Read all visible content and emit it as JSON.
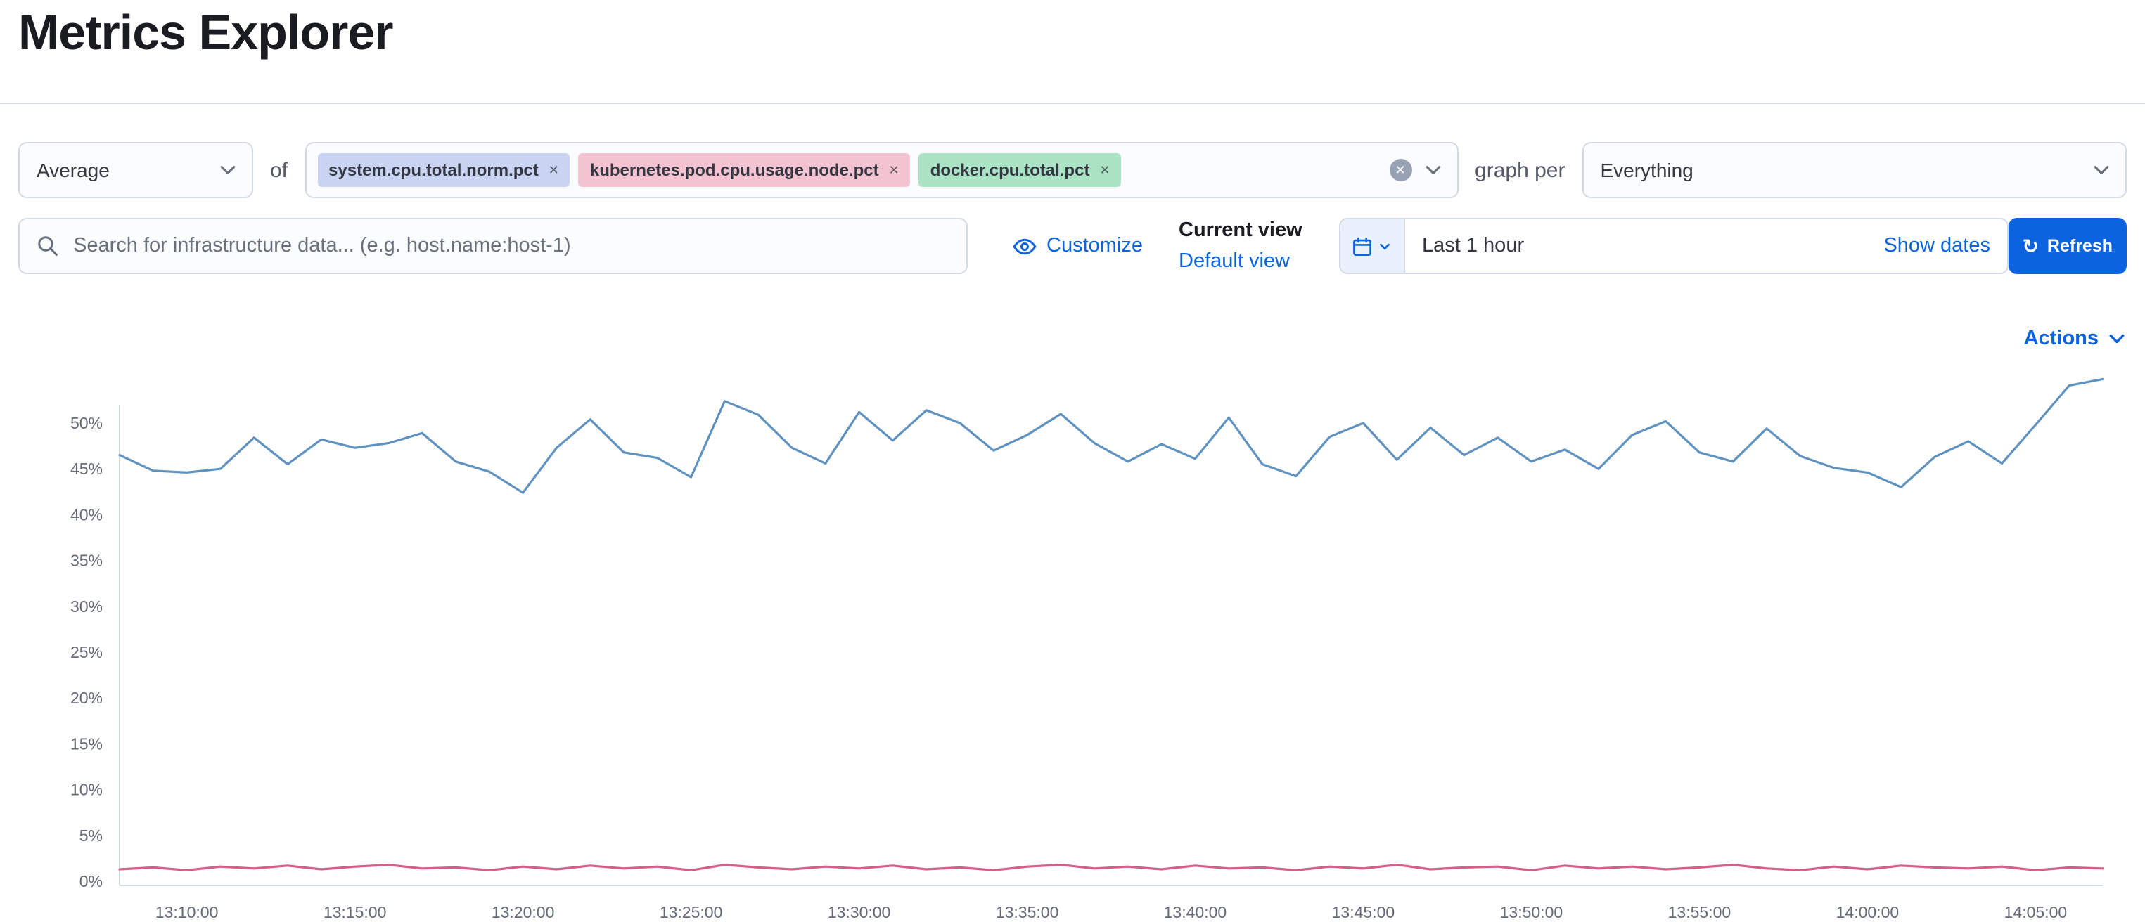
{
  "page": {
    "title": "Metrics Explorer"
  },
  "colors": {
    "primary": "#0b64dd",
    "border": "#d3dae6",
    "text": "#343741",
    "muted": "#69707d"
  },
  "toolbar": {
    "aggregation_value": "Average",
    "of_label": "of",
    "metrics": [
      {
        "label": "system.cpu.total.norm.pct",
        "color": "#c9d4f3"
      },
      {
        "label": "kubernetes.pod.cpu.usage.node.pct",
        "color": "#f3c3d1"
      },
      {
        "label": "docker.cpu.total.pct",
        "color": "#abe3c5"
      }
    ],
    "graph_per_label": "graph per",
    "group_by_value": "Everything"
  },
  "search": {
    "placeholder": "Search for infrastructure data... (e.g. host.name:host-1)",
    "customize_label": "Customize"
  },
  "view": {
    "current_view_label": "Current view",
    "default_view_label": "Default view"
  },
  "datepicker": {
    "time_range": "Last 1 hour",
    "show_dates_label": "Show dates",
    "refresh_label": "Refresh"
  },
  "chart": {
    "actions_label": "Actions"
  },
  "chart_data": {
    "type": "line",
    "title": "",
    "xlabel": "",
    "ylabel": "",
    "ylim": [
      0,
      55
    ],
    "grid": false,
    "legend": "none",
    "y_ticks": [
      0,
      5,
      10,
      15,
      20,
      25,
      30,
      35,
      40,
      45,
      50
    ],
    "x_ticks": [
      "13:10:00",
      "13:15:00",
      "13:20:00",
      "13:25:00",
      "13:30:00",
      "13:35:00",
      "13:40:00",
      "13:45:00",
      "13:50:00",
      "13:55:00",
      "14:00:00",
      "14:05:00"
    ],
    "x": [
      "13:08:00",
      "13:09:00",
      "13:10:00",
      "13:11:00",
      "13:12:00",
      "13:13:00",
      "13:14:00",
      "13:15:00",
      "13:16:00",
      "13:17:00",
      "13:18:00",
      "13:19:00",
      "13:20:00",
      "13:21:00",
      "13:22:00",
      "13:23:00",
      "13:24:00",
      "13:25:00",
      "13:26:00",
      "13:27:00",
      "13:28:00",
      "13:29:00",
      "13:30:00",
      "13:31:00",
      "13:32:00",
      "13:33:00",
      "13:34:00",
      "13:35:00",
      "13:36:00",
      "13:37:00",
      "13:38:00",
      "13:39:00",
      "13:40:00",
      "13:41:00",
      "13:42:00",
      "13:43:00",
      "13:44:00",
      "13:45:00",
      "13:46:00",
      "13:47:00",
      "13:48:00",
      "13:49:00",
      "13:50:00",
      "13:51:00",
      "13:52:00",
      "13:53:00",
      "13:54:00",
      "13:55:00",
      "13:56:00",
      "13:57:00",
      "13:58:00",
      "13:59:00",
      "14:00:00",
      "14:01:00",
      "14:02:00",
      "14:03:00",
      "14:04:00",
      "14:05:00",
      "14:06:00",
      "14:07:00"
    ],
    "series": [
      {
        "name": "system.cpu.total.norm.pct",
        "color": "#6092c0",
        "values": [
          46.5,
          44.8,
          44.6,
          45.0,
          48.4,
          45.5,
          48.2,
          47.3,
          47.8,
          48.9,
          45.8,
          44.7,
          42.4,
          47.3,
          50.4,
          46.8,
          46.2,
          44.1,
          52.4,
          50.9,
          47.3,
          45.6,
          51.2,
          48.1,
          51.4,
          50.0,
          47.0,
          48.7,
          51.0,
          47.8,
          45.8,
          47.7,
          46.1,
          50.6,
          45.5,
          44.2,
          48.5,
          50.0,
          46.0,
          49.5,
          46.5,
          48.4,
          45.8,
          47.1,
          45.0,
          48.7,
          50.2,
          46.8,
          45.8,
          49.4,
          46.4,
          45.1,
          44.6,
          43.0,
          46.3,
          48.0,
          45.6,
          49.8,
          54.1,
          54.8
        ]
      },
      {
        "name": "kubernetes.pod.cpu.usage.node.pct",
        "color": "#d36086",
        "values": [
          1.3,
          1.5,
          1.2,
          1.6,
          1.4,
          1.7,
          1.3,
          1.6,
          1.8,
          1.4,
          1.5,
          1.2,
          1.6,
          1.3,
          1.7,
          1.4,
          1.6,
          1.2,
          1.8,
          1.5,
          1.3,
          1.6,
          1.4,
          1.7,
          1.3,
          1.5,
          1.2,
          1.6,
          1.8,
          1.4,
          1.6,
          1.3,
          1.7,
          1.4,
          1.5,
          1.2,
          1.6,
          1.4,
          1.8,
          1.3,
          1.5,
          1.6,
          1.2,
          1.7,
          1.4,
          1.6,
          1.3,
          1.5,
          1.8,
          1.4,
          1.2,
          1.6,
          1.3,
          1.7,
          1.5,
          1.4,
          1.6,
          1.2,
          1.5,
          1.4
        ]
      }
    ]
  }
}
